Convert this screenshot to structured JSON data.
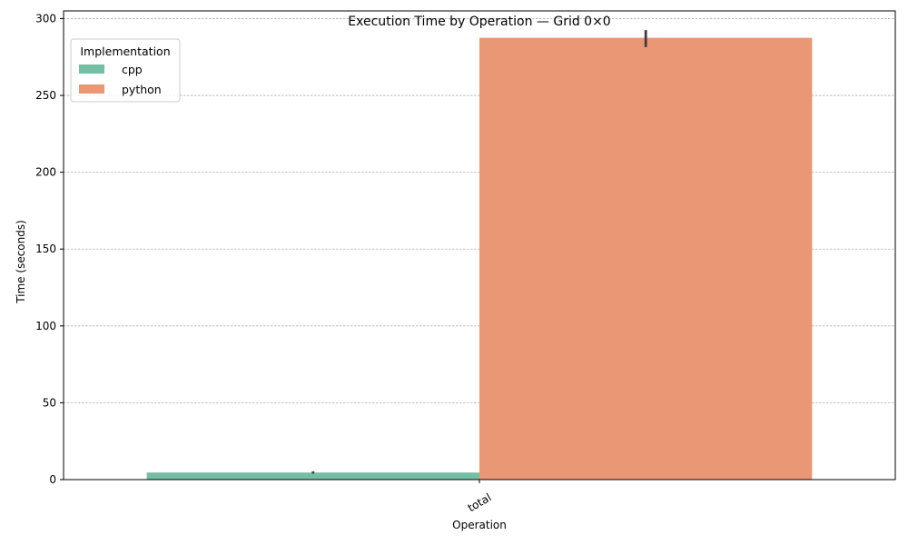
{
  "chart_data": {
    "type": "bar",
    "title": "Execution Time by Operation — Grid 0×0",
    "xlabel": "Operation",
    "ylabel": "Time (seconds)",
    "categories": [
      "total"
    ],
    "series": [
      {
        "name": "cpp",
        "values": [
          4.6
        ],
        "error_low": [
          3.9
        ],
        "error_high": [
          5.4
        ],
        "color": "#74bea3"
      },
      {
        "name": "python",
        "values": [
          287.5
        ],
        "error_low": [
          281.5
        ],
        "error_high": [
          292.5
        ],
        "color": "#e99775"
      }
    ],
    "ylim": [
      0,
      305
    ],
    "yticks": [
      0,
      50,
      100,
      150,
      200,
      250,
      300
    ],
    "grid": {
      "y": true,
      "x": false
    },
    "legend": {
      "title": "Implementation",
      "position": "top-left"
    },
    "xtick_rotation": -30
  }
}
